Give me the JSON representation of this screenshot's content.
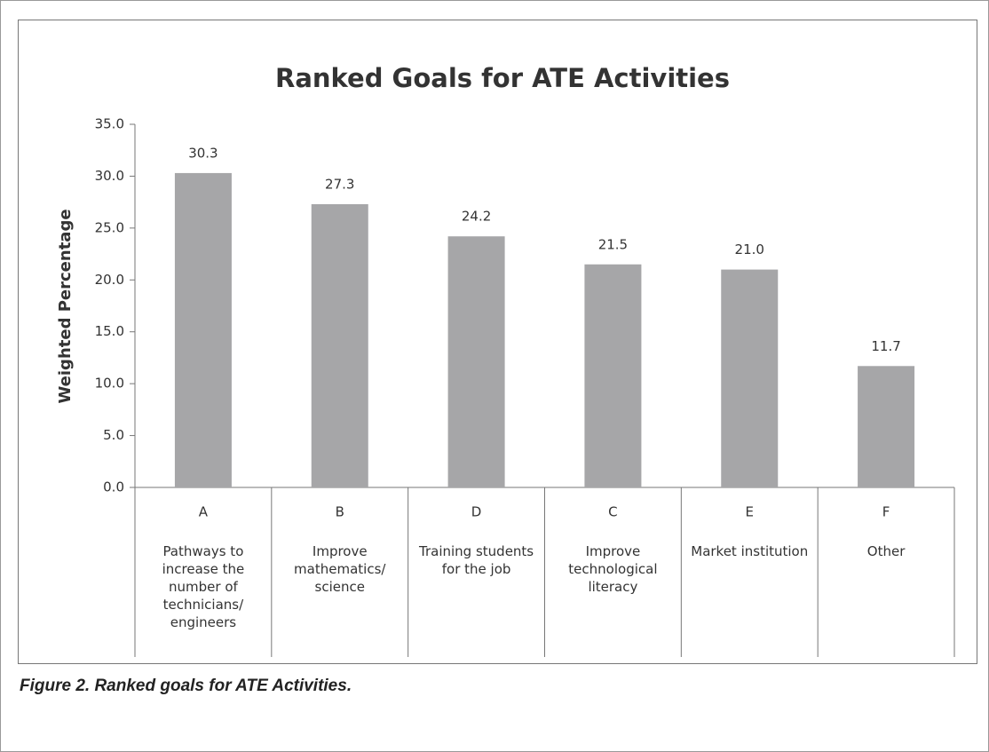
{
  "chart_data": {
    "type": "bar",
    "title": "Ranked Goals for ATE Activities",
    "ylabel": "Weighted Percentage",
    "categories": [
      "A",
      "B",
      "D",
      "C",
      "E",
      "F"
    ],
    "category_descriptions": [
      "Pathways to increase the number of technicians/ engineers",
      "Improve mathematics/ science",
      "Training students for the job",
      "Improve technological literacy",
      "Market institution",
      "Other"
    ],
    "values": [
      30.3,
      27.3,
      24.2,
      21.5,
      21.0,
      11.7
    ],
    "value_labels": [
      "30.3",
      "27.3",
      "24.2",
      "21.5",
      "21.0",
      "11.7"
    ],
    "color": "#a6a6a8",
    "ylim": [
      0,
      35
    ],
    "yticks": [
      {
        "value": 0,
        "label": "0.0"
      },
      {
        "value": 5,
        "label": "5.0"
      },
      {
        "value": 10,
        "label": "10.0"
      },
      {
        "value": 15,
        "label": "15.0"
      },
      {
        "value": 20,
        "label": "20.0"
      },
      {
        "value": 25,
        "label": "25.0"
      },
      {
        "value": 30,
        "label": "30.0"
      },
      {
        "value": 35,
        "label": "35.0"
      }
    ],
    "grid": false
  },
  "caption": "Figure 2. Ranked goals for ATE Activities."
}
